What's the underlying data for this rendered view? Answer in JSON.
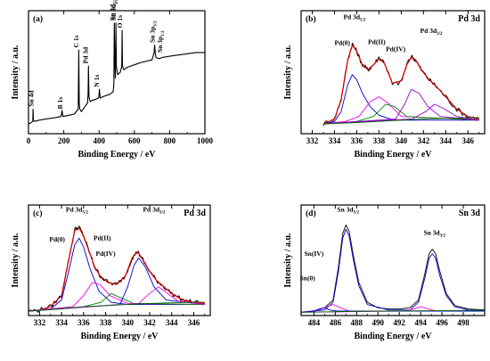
{
  "chart_data": [
    {
      "id": "a",
      "type": "line",
      "panel_label": "(a)",
      "title": "",
      "xlabel": "Binding Energy / eV",
      "ylabel": "Intensity / a.u.",
      "xlim": [
        0,
        1000
      ],
      "ylim": [
        0,
        100
      ],
      "xticks": [
        0,
        200,
        400,
        600,
        800,
        1000
      ],
      "series": [
        {
          "style": "black",
          "x": [
            0,
            15,
            24,
            26,
            28,
            35,
            60,
            100,
            150,
            185,
            190,
            195,
            230,
            260,
            282,
            285,
            288,
            291,
            300,
            320,
            335,
            338,
            340,
            343,
            350,
            360,
            380,
            398,
            402,
            406,
            420,
            440,
            460,
            480,
            484,
            486.5,
            489,
            492,
            493,
            495.5,
            498,
            505,
            520,
            529,
            531,
            533,
            540,
            560,
            600,
            640,
            700,
            712,
            715,
            718,
            722,
            740,
            760,
            800,
            850,
            900,
            950,
            1000
          ],
          "y": [
            8,
            9,
            10,
            20,
            11,
            10,
            11,
            12,
            13,
            14,
            19,
            14,
            15,
            16,
            20,
            68,
            24,
            20,
            18,
            22,
            25,
            33,
            55,
            30,
            26,
            27,
            28,
            29,
            36,
            29,
            30,
            31,
            32,
            34,
            40,
            90,
            60,
            45,
            50,
            90,
            55,
            48,
            50,
            55,
            84,
            55,
            52,
            54,
            56,
            58,
            60,
            66,
            72,
            66,
            62,
            61,
            62,
            63,
            64,
            65,
            66,
            66
          ]
        }
      ],
      "annotations": [
        {
          "main": "Sn 4d",
          "sub": "",
          "x": 28,
          "y": 22
        },
        {
          "main": "B 1s",
          "sub": "",
          "x": 191,
          "y": 20
        },
        {
          "main": "C 1s",
          "sub": "",
          "x": 284,
          "y": 70
        },
        {
          "main": "Pd 3d",
          "sub": "",
          "x": 337,
          "y": 57
        },
        {
          "main": "N 1s",
          "sub": "",
          "x": 400,
          "y": 38
        },
        {
          "main": "Sn 3d",
          "sub": "5/2",
          "x": 486.5,
          "y": 92
        },
        {
          "main": "Sn 3d",
          "sub": "3/2",
          "x": 495.5,
          "y": 92
        },
        {
          "main": "O 1s",
          "sub": "",
          "x": 531,
          "y": 86
        },
        {
          "main": "Sn 3p",
          "sub": "3/2",
          "x": 715,
          "y": 74
        },
        {
          "main": "Sn 3p",
          "sub": "1/2",
          "x": 757,
          "y": 66
        }
      ]
    },
    {
      "id": "b",
      "type": "line",
      "panel_label": "(b)",
      "title": "Pd 3d",
      "xlabel": "Binding Energy / eV",
      "ylabel": "Intensity / a.u.",
      "xlim": [
        331,
        347.5
      ],
      "ylim": [
        0,
        100
      ],
      "xticks": [
        332,
        334,
        336,
        338,
        340,
        342,
        344,
        346
      ],
      "series": [
        {
          "style": "data-noisy",
          "x": [
            333,
            334,
            334.6,
            335.2,
            335.6,
            336.0,
            336.5,
            337.0,
            337.5,
            338.0,
            338.5,
            339.2,
            340.0,
            340.5,
            340.9,
            341.3,
            341.8,
            342.5,
            343.2,
            344.0,
            345.0,
            346.0,
            347
          ],
          "y": [
            8,
            12,
            28,
            60,
            73,
            67,
            56,
            52,
            56,
            62,
            58,
            40,
            42,
            56,
            63,
            60,
            52,
            44,
            38,
            30,
            20,
            14,
            12
          ]
        },
        {
          "style": "fit-red",
          "x": [
            333,
            334,
            334.6,
            335.2,
            335.6,
            336.0,
            336.5,
            337.0,
            337.5,
            338.0,
            338.5,
            339.2,
            340.0,
            340.5,
            340.9,
            341.3,
            341.8,
            342.5,
            343.2,
            344.0,
            345.0,
            346.0,
            347
          ],
          "y": [
            8,
            12,
            28,
            60,
            72,
            67,
            56,
            52,
            56,
            61,
            57,
            41,
            43,
            56,
            62,
            60,
            52,
            44,
            38,
            30,
            20,
            14,
            12
          ]
        },
        {
          "style": "component-blue",
          "x": [
            333,
            334,
            334.6,
            335.2,
            335.6,
            336.0,
            336.5,
            337.2,
            338.0,
            339,
            340,
            347
          ],
          "y": [
            8,
            10,
            18,
            40,
            48,
            44,
            33,
            22,
            15,
            12,
            11,
            11
          ]
        },
        {
          "style": "component-magenta",
          "x": [
            333,
            335,
            336.2,
            337.2,
            338.0,
            338.8,
            340,
            347
          ],
          "y": [
            8,
            10,
            14,
            26,
            30,
            25,
            14,
            11
          ]
        },
        {
          "style": "component-green",
          "x": [
            333,
            336,
            337.5,
            338.6,
            339.4,
            340.5,
            347
          ],
          "y": [
            8,
            10,
            14,
            24,
            22,
            14,
            11
          ]
        },
        {
          "style": "component-purple",
          "x": [
            333,
            339.5,
            340.3,
            340.9,
            341.6,
            342.4,
            343.5,
            347
          ],
          "y": [
            8,
            12,
            24,
            36,
            33,
            22,
            14,
            11
          ]
        },
        {
          "style": "component-purple",
          "x": [
            333,
            341,
            342.2,
            343.0,
            343.9,
            345,
            347
          ],
          "y": [
            8,
            12,
            18,
            24,
            20,
            14,
            11
          ]
        },
        {
          "style": "baseline-green",
          "x": [
            333,
            336,
            338,
            340,
            342,
            344,
            346,
            347
          ],
          "y": [
            8,
            9,
            10,
            11,
            12,
            12.5,
            13,
            13
          ]
        }
      ],
      "annotations": [
        {
          "main": "Pd 3d",
          "sub": "5/2",
          "x": 335.8,
          "y": 93
        },
        {
          "main": "Pd(0)",
          "sub": "",
          "x": 334.7,
          "y": 72
        },
        {
          "main": "Pd(II)",
          "sub": "",
          "x": 337.8,
          "y": 73
        },
        {
          "main": "Pd(IV)",
          "sub": "",
          "x": 339.5,
          "y": 67
        },
        {
          "main": "Pd 3d",
          "sub": "3/2",
          "x": 342.7,
          "y": 82
        }
      ]
    },
    {
      "id": "c",
      "type": "line",
      "panel_label": "(c)",
      "title": "Pd 3d",
      "xlabel": "Binding Energy / eV",
      "ylabel": "Intensity / a.u.",
      "xlim": [
        331,
        347.5
      ],
      "ylim": [
        0,
        100
      ],
      "xticks": [
        332,
        334,
        336,
        338,
        340,
        342,
        344,
        346
      ],
      "series": [
        {
          "style": "data-noisy",
          "x": [
            331,
            332,
            333,
            334,
            334.6,
            335.2,
            335.6,
            336.0,
            336.5,
            337.0,
            337.5,
            338.2,
            339.0,
            339.8,
            340.4,
            340.9,
            341.4,
            342.0,
            342.6,
            343.3,
            344.0,
            345.0,
            346.0,
            347
          ],
          "y": [
            4,
            5,
            8,
            18,
            48,
            78,
            80,
            72,
            58,
            44,
            36,
            30,
            28,
            36,
            52,
            58,
            50,
            40,
            32,
            26,
            20,
            14,
            12,
            11
          ]
        },
        {
          "style": "fit-red",
          "x": [
            331,
            332,
            333,
            334,
            334.6,
            335.2,
            335.6,
            336.0,
            336.5,
            337.0,
            337.5,
            338.2,
            339.0,
            339.8,
            340.4,
            340.9,
            341.4,
            342.0,
            342.6,
            343.3,
            344.0,
            345.0,
            346.0,
            347
          ],
          "y": [
            4,
            5,
            8,
            18,
            48,
            77,
            79,
            72,
            58,
            44,
            36,
            30,
            28,
            36,
            52,
            58,
            50,
            40,
            32,
            26,
            20,
            14,
            12,
            11
          ]
        },
        {
          "style": "component-blue",
          "x": [
            331,
            333,
            334,
            334.6,
            335.2,
            335.6,
            336.0,
            336.6,
            337.4,
            338.5,
            340,
            347
          ],
          "y": [
            4,
            6,
            14,
            38,
            64,
            70,
            62,
            42,
            22,
            12,
            10,
            10
          ]
        },
        {
          "style": "component-magenta",
          "x": [
            331,
            335,
            336.0,
            336.8,
            337.5,
            338.4,
            340,
            347
          ],
          "y": [
            4,
            8,
            18,
            30,
            28,
            18,
            11,
            10
          ]
        },
        {
          "style": "component-green",
          "x": [
            331,
            336,
            337.6,
            338.5,
            339.4,
            340.5,
            347
          ],
          "y": [
            4,
            8,
            12,
            20,
            16,
            11,
            10
          ]
        },
        {
          "style": "component-blue",
          "x": [
            331,
            339.3,
            340.0,
            340.6,
            341.0,
            341.6,
            342.4,
            343.5,
            347
          ],
          "y": [
            4,
            10,
            26,
            46,
            52,
            44,
            26,
            14,
            10
          ]
        },
        {
          "style": "component-magenta",
          "x": [
            331,
            341,
            342.0,
            342.8,
            343.6,
            344.6,
            347
          ],
          "y": [
            4,
            11,
            20,
            26,
            20,
            13,
            10
          ]
        },
        {
          "style": "baseline-green",
          "x": [
            331,
            334,
            336,
            338,
            340,
            342,
            344,
            346,
            347
          ],
          "y": [
            4,
            6,
            8,
            9,
            10,
            11,
            11.5,
            12,
            12
          ]
        }
      ],
      "annotations": [
        {
          "main": "Pd 3d",
          "sub": "5/2",
          "x": 335.4,
          "y": 94
        },
        {
          "main": "Pd(0)",
          "sub": "",
          "x": 333.6,
          "y": 67
        },
        {
          "main": "Pd(II)",
          "sub": "",
          "x": 337.7,
          "y": 68
        },
        {
          "main": "Pd(IV)",
          "sub": "",
          "x": 338.0,
          "y": 54
        },
        {
          "main": "Pd 3d",
          "sub": "3/2",
          "x": 342.4,
          "y": 94
        }
      ]
    },
    {
      "id": "d",
      "type": "line",
      "panel_label": "(d)",
      "title": "Sn 3d",
      "xlabel": "Binding Energy / eV",
      "ylabel": "Intensity / a.u.",
      "xlim": [
        482.8,
        500
      ],
      "ylim": [
        0,
        100
      ],
      "xticks": [
        484,
        486,
        488,
        490,
        492,
        494,
        496,
        498
      ],
      "series": [
        {
          "style": "data-clean",
          "x": [
            482.8,
            484,
            485,
            485.8,
            486.3,
            486.7,
            487.0,
            487.3,
            487.7,
            488.2,
            489,
            490,
            491,
            492,
            493,
            493.8,
            494.4,
            494.8,
            495.1,
            495.4,
            495.8,
            496.4,
            497.2,
            498.5,
            500
          ],
          "y": [
            3,
            4,
            7,
            14,
            44,
            74,
            82,
            76,
            54,
            30,
            12,
            7,
            6,
            6,
            7,
            14,
            38,
            56,
            60,
            56,
            40,
            20,
            9,
            6,
            5
          ]
        },
        {
          "style": "component-blue",
          "x": [
            482.8,
            485,
            485.8,
            486.3,
            486.7,
            487.0,
            487.3,
            487.7,
            488.2,
            489,
            491,
            493,
            493.8,
            494.4,
            494.8,
            495.1,
            495.4,
            495.8,
            496.4,
            497.2,
            498.5,
            500
          ],
          "y": [
            3,
            5,
            12,
            40,
            70,
            78,
            72,
            50,
            27,
            10,
            5,
            5,
            12,
            34,
            52,
            56,
            52,
            36,
            18,
            8,
            5,
            4
          ]
        },
        {
          "style": "component-magenta",
          "x": [
            482.8,
            484.5,
            485.2,
            485.8,
            486.5,
            487.3,
            500
          ],
          "y": [
            3,
            5,
            8,
            10,
            7,
            4,
            4
          ]
        },
        {
          "style": "component-magenta",
          "x": [
            482.8,
            492.5,
            493.4,
            494.0,
            494.7,
            495.5,
            500
          ],
          "y": [
            3,
            4,
            6,
            8,
            6,
            4,
            4
          ]
        },
        {
          "style": "component-blue",
          "x": [
            482.8,
            484.0,
            484.5,
            485.0,
            485.5,
            486.2,
            500
          ],
          "y": [
            3,
            4,
            6,
            7,
            5,
            4,
            4
          ]
        },
        {
          "style": "baseline-green",
          "x": [
            482.8,
            486,
            490,
            494,
            498,
            500
          ],
          "y": [
            3,
            3.5,
            4,
            4.3,
            4.6,
            4.8
          ]
        }
      ],
      "annotations": [
        {
          "main": "Sn 3d",
          "sub": "5/2",
          "x": 487.2,
          "y": 94
        },
        {
          "main": "Sn(IV)",
          "sub": "",
          "x": 484.0,
          "y": 54
        },
        {
          "main": "Sn(0)",
          "sub": "",
          "x": 483.4,
          "y": 32
        },
        {
          "main": "Sn 3d",
          "sub": "3/2",
          "x": 495.3,
          "y": 73
        }
      ]
    }
  ]
}
